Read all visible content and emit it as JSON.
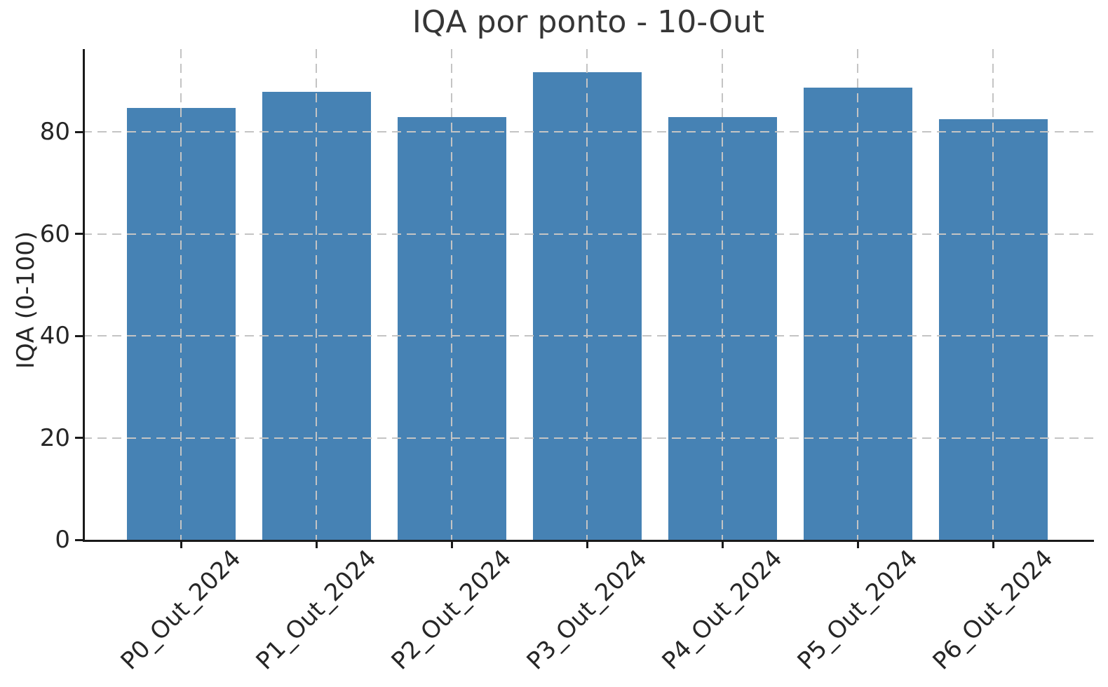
{
  "chart_data": {
    "type": "bar",
    "title": "IQA por ponto - 10-Out",
    "ylabel": "IQA (0-100)",
    "xlabel": "",
    "categories": [
      "P0_Out_2024",
      "P1_Out_2024",
      "P2_Out_2024",
      "P3_Out_2024",
      "P4_Out_2024",
      "P5_Out_2024",
      "P6_Out_2024"
    ],
    "values": [
      84.8,
      87.9,
      82.9,
      91.7,
      82.9,
      88.7,
      82.5
    ],
    "yticks": [
      0,
      20,
      40,
      60,
      80
    ],
    "ylim": [
      0,
      96.3
    ],
    "bar_color": "#4682b4",
    "grid_color": "#c4c4c4",
    "grid_style": "dashed, horizontal and vertical, drawn over bars",
    "legend": "none"
  }
}
